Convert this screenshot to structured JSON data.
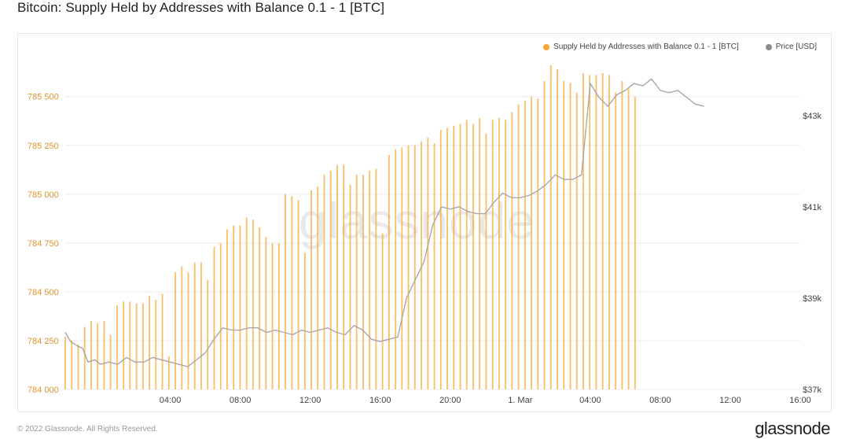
{
  "title": "Bitcoin: Supply Held by Addresses with Balance 0.1 - 1 [BTC]",
  "watermark": "glassnode",
  "footer": {
    "copyright": "© 2022 Glassnode. All Rights Reserved.",
    "logo": "glassnode"
  },
  "colors": {
    "supply": "#f7a833",
    "price": "#a8a8a8",
    "grid": "#ececec",
    "left_axis_text": "#e0952a"
  },
  "chart_data": {
    "type": "bar",
    "legend": [
      {
        "name": "Supply Held by Addresses with Balance 0.1 - 1 [BTC]",
        "color": "#f7a833",
        "marker": "dot"
      },
      {
        "name": "Price [USD]",
        "color": "#8c8c8c",
        "marker": "dot"
      }
    ],
    "legend_position": "top-right",
    "grid": true,
    "x_ticks": [
      "04:00",
      "08:00",
      "12:00",
      "16:00",
      "20:00",
      "1. Mar",
      "04:00",
      "08:00",
      "12:00",
      "16:00"
    ],
    "x_range_hours": [
      -2,
      40
    ],
    "y_left": {
      "ticks": [
        "784 000",
        "784 250",
        "784 500",
        "784 750",
        "785 000",
        "785 250",
        "785 500"
      ],
      "min": 784000,
      "max": 785660
    },
    "y_right": {
      "ticks": [
        "$37k",
        "$39k",
        "$41k",
        "$43k"
      ],
      "min": 37000,
      "max": 44100
    },
    "series": [
      {
        "name": "Supply Held by Addresses with Balance 0.1 - 1 [BTC]",
        "type": "bar",
        "values": [
          784270,
          784250,
          784230,
          784320,
          784350,
          784340,
          784350,
          784280,
          784430,
          784450,
          784450,
          784440,
          784440,
          784480,
          784460,
          784490,
          784170,
          784600,
          784630,
          784600,
          784650,
          784650,
          784560,
          784730,
          784750,
          784820,
          784840,
          784840,
          784880,
          784870,
          784830,
          784780,
          784750,
          784750,
          785000,
          784990,
          784970,
          784700,
          785020,
          785040,
          785100,
          785120,
          785150,
          785150,
          785050,
          785100,
          785100,
          785120,
          785130,
          784800,
          785200,
          785230,
          785240,
          785250,
          785250,
          785270,
          785290,
          785260,
          785330,
          785340,
          785350,
          785360,
          785380,
          785360,
          785390,
          785310,
          785380,
          785390,
          785380,
          785420,
          785460,
          785480,
          785500,
          785490,
          785580,
          785660,
          785640,
          785580,
          785570,
          785520,
          785620,
          785610,
          785610,
          785620,
          785610,
          785520,
          785580,
          785540,
          785500
        ]
      },
      {
        "name": "Price [USD]",
        "type": "line",
        "points": [
          [
            -2,
            38250
          ],
          [
            -1.7,
            38050
          ],
          [
            -1.3,
            37950
          ],
          [
            -1,
            37900
          ],
          [
            -0.7,
            37600
          ],
          [
            -0.3,
            37650
          ],
          [
            0,
            37550
          ],
          [
            0.5,
            37600
          ],
          [
            1,
            37550
          ],
          [
            1.5,
            37700
          ],
          [
            2,
            37600
          ],
          [
            2.5,
            37600
          ],
          [
            3,
            37700
          ],
          [
            3.5,
            37650
          ],
          [
            4,
            37600
          ],
          [
            4.5,
            37550
          ],
          [
            5,
            37500
          ],
          [
            5.5,
            37650
          ],
          [
            6,
            37800
          ],
          [
            6.5,
            38100
          ],
          [
            7,
            38350
          ],
          [
            7.5,
            38300
          ],
          [
            8,
            38300
          ],
          [
            8.5,
            38350
          ],
          [
            9,
            38350
          ],
          [
            9.5,
            38250
          ],
          [
            10,
            38300
          ],
          [
            10.5,
            38250
          ],
          [
            11,
            38200
          ],
          [
            11.5,
            38300
          ],
          [
            12,
            38250
          ],
          [
            12.5,
            38300
          ],
          [
            13,
            38350
          ],
          [
            13.5,
            38250
          ],
          [
            14,
            38200
          ],
          [
            14.5,
            38400
          ],
          [
            15,
            38300
          ],
          [
            15.5,
            38100
          ],
          [
            16,
            38050
          ],
          [
            16.5,
            38100
          ],
          [
            17,
            38150
          ],
          [
            17.5,
            39000
          ],
          [
            18,
            39400
          ],
          [
            18.5,
            39800
          ],
          [
            19,
            40600
          ],
          [
            19.5,
            41000
          ],
          [
            20,
            40950
          ],
          [
            20.5,
            41000
          ],
          [
            21,
            40900
          ],
          [
            21.5,
            40850
          ],
          [
            22,
            40850
          ],
          [
            22.5,
            41100
          ],
          [
            23,
            41300
          ],
          [
            23.5,
            41200
          ],
          [
            24,
            41200
          ],
          [
            24.5,
            41250
          ],
          [
            25,
            41350
          ],
          [
            25.5,
            41500
          ],
          [
            26,
            41700
          ],
          [
            26.5,
            41600
          ],
          [
            27,
            41600
          ],
          [
            27.5,
            41700
          ],
          [
            28,
            43700
          ],
          [
            28.5,
            43400
          ],
          [
            29,
            43200
          ],
          [
            29.5,
            43450
          ],
          [
            30,
            43550
          ],
          [
            30.5,
            43700
          ],
          [
            31,
            43650
          ],
          [
            31.5,
            43800
          ],
          [
            32,
            43550
          ],
          [
            32.5,
            43500
          ],
          [
            33,
            43550
          ],
          [
            33.5,
            43400
          ],
          [
            34,
            43250
          ],
          [
            34.5,
            43200
          ]
        ]
      }
    ]
  }
}
